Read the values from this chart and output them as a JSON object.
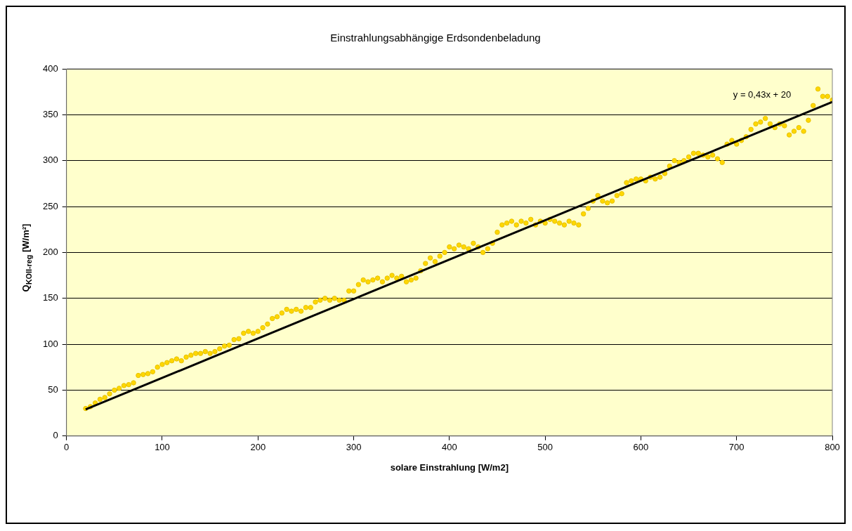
{
  "chart_data": {
    "type": "scatter",
    "title": "Einstrahlungsabhängige Erdsondenbeladung",
    "xlabel": "solare Einstrahlung [W/m2]",
    "ylabel": "Q$_{KOII-reg}$ [W/m²]",
    "xlim": [
      0,
      800
    ],
    "xticks": [
      0,
      100,
      200,
      300,
      400,
      500,
      600,
      700,
      800
    ],
    "ylim": [
      0,
      400
    ],
    "yticks": [
      0,
      50,
      100,
      150,
      200,
      250,
      300,
      350,
      400
    ],
    "grid": "y",
    "legend": false,
    "annotations": [
      "y = 0,43x + 20"
    ],
    "series": [
      {
        "color": "#ffd700",
        "marker": "circle",
        "x": [
          20,
          25,
          30,
          35,
          40,
          45,
          50,
          55,
          60,
          65,
          70,
          75,
          80,
          85,
          90,
          95,
          100,
          105,
          110,
          115,
          120,
          125,
          130,
          135,
          140,
          145,
          150,
          155,
          160,
          165,
          170,
          175,
          180,
          185,
          190,
          195,
          200,
          205,
          210,
          215,
          220,
          225,
          230,
          235,
          240,
          245,
          250,
          255,
          260,
          265,
          270,
          275,
          280,
          285,
          290,
          295,
          300,
          305,
          310,
          315,
          320,
          325,
          330,
          335,
          340,
          345,
          350,
          355,
          360,
          365,
          370,
          375,
          380,
          385,
          390,
          395,
          400,
          405,
          410,
          415,
          420,
          425,
          430,
          435,
          440,
          445,
          450,
          455,
          460,
          465,
          470,
          475,
          480,
          485,
          490,
          495,
          500,
          505,
          510,
          515,
          520,
          525,
          530,
          535,
          540,
          545,
          550,
          555,
          560,
          565,
          570,
          575,
          580,
          585,
          590,
          595,
          600,
          605,
          610,
          615,
          620,
          625,
          630,
          635,
          640,
          645,
          650,
          655,
          660,
          665,
          670,
          675,
          680,
          685,
          690,
          695,
          700,
          705,
          710,
          715,
          720,
          725,
          730,
          735,
          740,
          745,
          750,
          755,
          760,
          765,
          770,
          775,
          780,
          785,
          790,
          795,
          800
        ],
        "values": [
          30,
          32,
          36,
          40,
          42,
          46,
          50,
          52,
          55,
          56,
          58,
          66,
          67,
          68,
          70,
          75,
          78,
          80,
          82,
          84,
          82,
          86,
          88,
          90,
          90,
          92,
          90,
          92,
          95,
          98,
          99,
          105,
          106,
          112,
          114,
          112,
          114,
          118,
          122,
          128,
          130,
          134,
          138,
          136,
          138,
          136,
          140,
          140,
          146,
          148,
          150,
          148,
          150,
          148,
          148,
          158,
          158,
          165,
          170,
          168,
          170,
          172,
          168,
          172,
          175,
          172,
          174,
          168,
          170,
          172,
          180,
          188,
          194,
          190,
          196,
          200,
          206,
          204,
          208,
          206,
          204,
          210,
          206,
          200,
          204,
          210,
          222,
          230,
          232,
          234,
          230,
          234,
          232,
          236,
          230,
          234,
          232,
          236,
          234,
          232,
          230,
          234,
          232,
          230,
          242,
          248,
          256,
          262,
          256,
          254,
          256,
          262,
          264,
          276,
          278,
          280,
          280,
          278,
          282,
          280,
          282,
          286,
          294,
          300,
          298,
          300,
          304,
          308,
          308,
          306,
          304,
          306,
          302,
          298,
          318,
          322,
          318,
          322,
          326,
          334,
          340,
          342,
          346,
          340,
          336,
          340,
          338,
          328,
          332,
          336,
          332,
          344,
          360,
          378,
          370,
          370,
          366
        ]
      },
      {
        "type": "line",
        "marker": "none",
        "color": "#000000",
        "x": [
          20,
          800
        ],
        "values": [
          29,
          364
        ]
      }
    ]
  }
}
